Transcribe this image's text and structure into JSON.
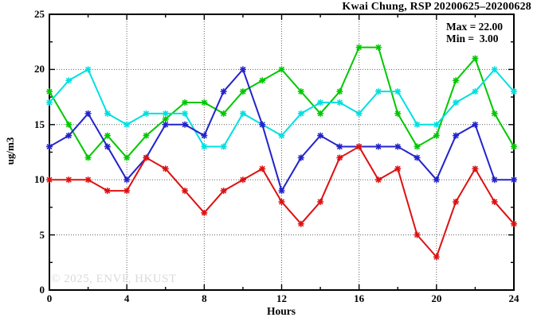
{
  "header": {
    "title": "Kwai Chung, RSP 20200625–20200628"
  },
  "annotation": {
    "max_label": "Max = 22.00",
    "min_label": "Min =  3.00"
  },
  "watermark": "© 2025, ENVF, HKUST",
  "axes": {
    "x_label": "Hours",
    "y_label": "ug/m3",
    "x_ticks": [
      0,
      4,
      8,
      12,
      16,
      20,
      24
    ],
    "y_ticks": [
      0,
      5,
      10,
      15,
      20,
      25
    ]
  },
  "colors": {
    "green": "#00c800",
    "cyan": "#00e0e0",
    "blue": "#2323cc",
    "red": "#dd1111",
    "grid": "#606060",
    "axis": "#000000",
    "watermark_gray": "#dadada"
  },
  "chart_data": {
    "type": "line",
    "title": "Kwai Chung, RSP 20200625–20200628",
    "xlabel": "Hours",
    "ylabel": "ug/m3",
    "xlim": [
      0,
      24
    ],
    "ylim": [
      0,
      25
    ],
    "x_major_ticks": [
      0,
      4,
      8,
      12,
      16,
      20,
      24
    ],
    "x_minor_ticks": [
      2,
      6,
      10,
      14,
      18,
      22
    ],
    "y_major_ticks": [
      0,
      5,
      10,
      15,
      20,
      25
    ],
    "y_minor_ticks": [
      2.5,
      7.5,
      12.5,
      17.5,
      22.5
    ],
    "grid": true,
    "legend_position": "none",
    "annotations": [
      "Max = 22.00",
      "Min =  3.00"
    ],
    "marker": "asterisk",
    "x": [
      0,
      1,
      2,
      3,
      4,
      5,
      6,
      7,
      8,
      9,
      10,
      11,
      12,
      13,
      14,
      15,
      16,
      17,
      18,
      19,
      20,
      21,
      22,
      23,
      24
    ],
    "series": [
      {
        "name": "green-series",
        "color": "#00c800",
        "values": [
          18,
          15,
          12,
          14,
          12,
          14,
          15.5,
          17,
          17,
          16,
          18,
          19,
          20,
          18,
          16,
          18,
          22,
          22,
          16,
          13,
          14,
          19,
          21,
          16,
          13
        ]
      },
      {
        "name": "cyan-series",
        "color": "#00e0e0",
        "values": [
          17,
          19,
          20,
          16,
          15,
          16,
          16,
          16,
          13,
          13,
          16,
          15,
          14,
          16,
          17,
          17,
          16,
          18,
          18,
          15,
          15,
          17,
          18,
          20,
          18
        ]
      },
      {
        "name": "blue-series",
        "color": "#2323cc",
        "values": [
          13,
          14,
          16,
          13,
          10,
          12,
          15,
          15,
          14,
          18,
          20,
          15,
          9,
          12,
          14,
          13,
          13,
          13,
          13,
          12,
          10,
          14,
          15,
          10,
          10
        ]
      },
      {
        "name": "red-series",
        "color": "#dd1111",
        "values": [
          10,
          10,
          10,
          9,
          9,
          12,
          11,
          9,
          7,
          9,
          10,
          11,
          8,
          6,
          8,
          12,
          13,
          10,
          11,
          5,
          3,
          8,
          11,
          8,
          6
        ]
      }
    ]
  }
}
